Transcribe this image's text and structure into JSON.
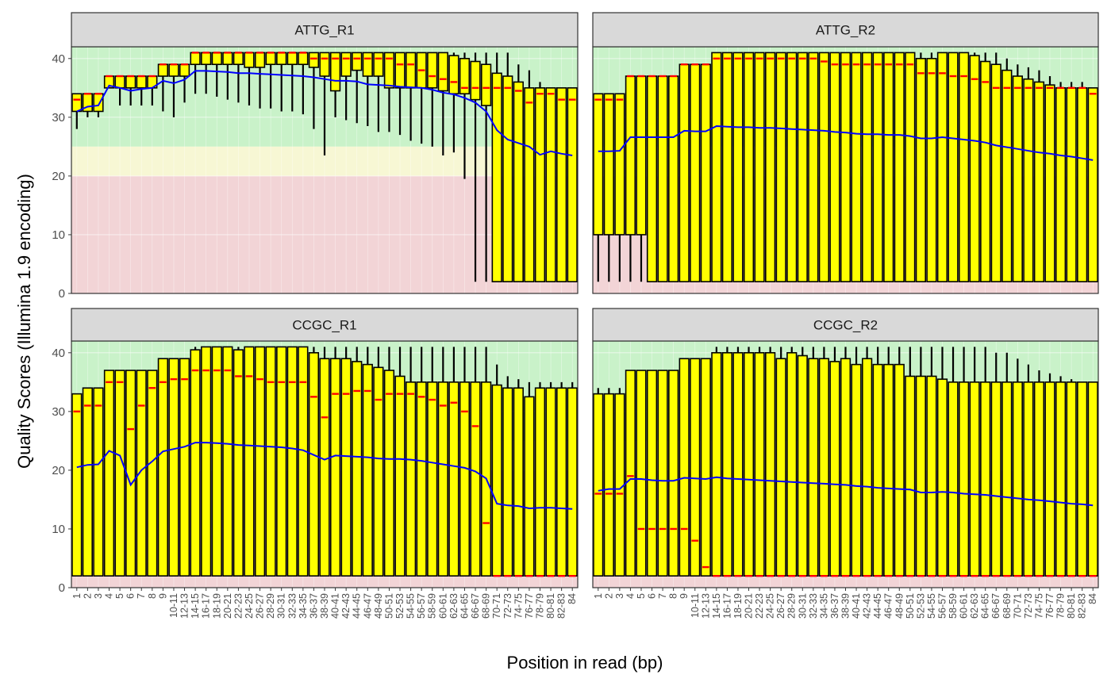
{
  "chart_data": {
    "type": "boxplot",
    "ylabel": "Quality Scores (Illumina 1.9 encoding)",
    "xlabel": "Position in read (bp)",
    "ylim": [
      0,
      42
    ],
    "yticks": [
      0,
      10,
      20,
      30,
      40
    ],
    "grid": true,
    "colors": {
      "box_fill": "#ffff00",
      "box_stroke": "#000000",
      "median": "#ff0000",
      "mean_line": "#0000ff",
      "band_good": "#c9f2c9",
      "band_ok": "#f7f7d4",
      "band_bad": "#f2d4d6",
      "strip_fill": "#d9d9d9"
    },
    "quality_bands": [
      {
        "name": "good",
        "from": 25,
        "to": 42
      },
      {
        "name": "ok",
        "from": 20,
        "to": 25
      },
      {
        "name": "bad",
        "from": 0,
        "to": 20
      }
    ],
    "categories": [
      "1",
      "2",
      "3",
      "4",
      "5",
      "6",
      "7",
      "8",
      "9",
      "10-11",
      "12-13",
      "14-15",
      "16-17",
      "18-19",
      "20-21",
      "22-23",
      "24-25",
      "26-27",
      "28-29",
      "30-31",
      "32-33",
      "34-35",
      "36-37",
      "38-39",
      "40-41",
      "42-43",
      "44-45",
      "46-47",
      "48-49",
      "50-51",
      "52-53",
      "54-55",
      "56-57",
      "58-59",
      "60-61",
      "62-63",
      "64-65",
      "66-67",
      "68-69",
      "70-71",
      "72-73",
      "74-75",
      "76-77",
      "78-79",
      "80-81",
      "82-83",
      "84"
    ],
    "tick_labels": [
      "1",
      "2",
      "3",
      "4",
      "5",
      "6",
      "7",
      "8",
      "9",
      "10-11",
      "12-13",
      "14-15",
      "16-17",
      "18-19",
      "20-21",
      "22-23",
      "24-25",
      "26-27",
      "28-29",
      "30-31",
      "32-33",
      "34-35",
      "36-37",
      "38-39",
      "40-41",
      "42-43",
      "44-45",
      "46-47",
      "48-49",
      "50-51",
      "52-53",
      "54-55",
      "56-57",
      "58-59",
      "60-61",
      "62-63",
      "64-65",
      "66-67",
      "68-69",
      "70-71",
      "72-73",
      "74-75",
      "76-77",
      "78-79",
      "80-81",
      "82-83",
      "84"
    ],
    "ytick_labels": [
      "0",
      "10",
      "20",
      "30",
      "40"
    ],
    "panels": [
      {
        "strip": "ATTG_R1",
        "mean": [
          31,
          31.8,
          32,
          35.4,
          35,
          34.5,
          34.8,
          35,
          36.2,
          35.8,
          36.4,
          37.9,
          37.9,
          37.8,
          37.7,
          37.5,
          37.5,
          37.4,
          37.3,
          37.2,
          37.1,
          37,
          36.8,
          36.5,
          36.2,
          36.2,
          36.1,
          35.6,
          35.5,
          35.4,
          35.2,
          35.1,
          35,
          34.7,
          34.2,
          33.9,
          33.3,
          32.5,
          31,
          27.8,
          26.2,
          25.6,
          25,
          23.6,
          24.2,
          23.8,
          23.5
        ],
        "median": [
          33,
          34,
          34,
          37,
          37,
          37,
          37,
          37,
          39,
          39,
          39,
          41,
          41,
          41,
          41,
          41,
          41,
          41,
          41,
          41,
          41,
          41,
          40,
          40,
          40,
          40,
          40,
          40,
          40,
          40,
          39,
          39,
          38,
          37,
          36.5,
          36,
          35,
          35,
          35,
          35,
          35,
          34.5,
          32.5,
          34,
          34,
          33,
          33
        ],
        "q1": [
          31,
          31,
          31,
          35,
          35,
          35,
          35,
          35,
          37,
          37,
          37,
          39,
          39,
          39,
          39,
          39,
          38.5,
          38.5,
          39,
          39,
          39,
          39,
          38.5,
          37,
          34.5,
          37,
          38,
          37,
          37,
          35,
          35,
          35,
          35,
          35,
          34.5,
          34,
          34,
          33,
          32,
          2,
          2,
          2,
          2,
          2,
          2,
          2,
          2
        ],
        "q3": [
          34,
          34,
          34,
          37,
          37,
          37,
          37,
          37,
          39,
          39,
          39,
          41,
          41,
          41,
          41,
          41,
          41,
          41,
          41,
          41,
          41,
          41,
          41,
          41,
          41,
          41,
          41,
          41,
          41,
          41,
          41,
          41,
          41,
          41,
          41,
          40.5,
          40,
          39.5,
          39,
          37.5,
          37,
          36,
          35,
          35,
          35,
          35,
          35
        ],
        "lower": [
          28,
          30,
          30,
          35,
          32,
          32,
          32,
          32,
          31,
          30,
          32.5,
          34,
          34,
          33.5,
          33,
          32.5,
          32,
          31.5,
          31.5,
          31,
          31,
          30.5,
          28,
          23.5,
          30,
          29.5,
          29,
          28.5,
          27.5,
          27.5,
          27,
          26,
          25.5,
          25,
          23.5,
          24,
          19.5,
          2,
          2,
          2,
          2,
          2,
          2,
          2,
          2,
          2,
          2
        ],
        "upper": [
          34,
          34,
          34,
          37,
          37,
          37,
          37,
          37,
          39,
          39,
          39,
          41,
          41,
          41,
          41,
          41,
          41,
          41,
          41,
          41,
          41,
          41,
          41,
          41,
          41,
          41,
          41,
          41,
          41,
          41,
          41,
          41,
          41,
          41,
          41,
          41,
          41,
          41,
          41,
          41,
          41,
          39,
          38,
          36,
          35,
          35,
          35
        ]
      },
      {
        "strip": "ATTG_R2",
        "mean": [
          24.2,
          24.2,
          24.3,
          26.6,
          26.6,
          26.6,
          26.6,
          26.6,
          27.7,
          27.6,
          27.6,
          28.5,
          28.4,
          28.3,
          28.3,
          28.2,
          28.2,
          28.1,
          28,
          27.9,
          27.8,
          27.7,
          27.5,
          27.4,
          27.2,
          27.1,
          27.1,
          27,
          27,
          26.8,
          26.4,
          26.4,
          26.6,
          26.4,
          26.2,
          26,
          25.7,
          25.2,
          24.9,
          24.6,
          24.3,
          24,
          23.8,
          23.5,
          23.3,
          23,
          22.7
        ],
        "median": [
          33,
          33,
          33,
          37,
          37,
          37,
          37,
          37,
          39,
          39,
          39,
          40,
          40,
          40,
          40,
          40,
          40,
          40,
          40,
          40,
          40,
          39.5,
          39,
          39,
          39,
          39,
          39,
          39,
          39,
          39,
          37.5,
          37.5,
          37.5,
          37,
          37,
          36.5,
          36,
          35,
          35,
          35,
          35,
          35,
          35,
          35,
          35,
          35,
          34
        ],
        "q1": [
          10,
          10,
          10,
          10,
          10,
          2,
          2,
          2,
          2,
          2,
          2,
          2,
          2,
          2,
          2,
          2,
          2,
          2,
          2,
          2,
          2,
          2,
          2,
          2,
          2,
          2,
          2,
          2,
          2,
          2,
          2,
          2,
          2,
          2,
          2,
          2,
          2,
          2,
          2,
          2,
          2,
          2,
          2,
          2,
          2,
          2,
          2
        ],
        "q3": [
          34,
          34,
          34,
          37,
          37,
          37,
          37,
          37,
          39,
          39,
          39,
          41,
          41,
          41,
          41,
          41,
          41,
          41,
          41,
          41,
          41,
          41,
          41,
          41,
          41,
          41,
          41,
          41,
          41,
          41,
          40,
          40,
          41,
          41,
          41,
          40.5,
          39.5,
          39,
          38,
          37,
          36.5,
          36,
          35.5,
          35,
          35,
          35,
          35
        ],
        "lower": [
          2,
          2,
          2,
          2,
          2,
          2,
          2,
          2,
          2,
          2,
          2,
          2,
          2,
          2,
          2,
          2,
          2,
          2,
          2,
          2,
          2,
          2,
          2,
          2,
          2,
          2,
          2,
          2,
          2,
          2,
          2,
          2,
          2,
          2,
          2,
          2,
          2,
          2,
          2,
          2,
          2,
          2,
          2,
          2,
          2,
          2,
          2
        ],
        "upper": [
          34,
          34,
          34,
          37,
          37,
          37,
          37,
          37,
          39,
          39,
          39,
          41,
          41,
          41,
          41,
          41,
          41,
          41,
          41,
          41,
          41,
          41,
          41,
          41,
          41,
          41,
          41,
          41,
          41,
          41,
          41,
          41,
          41,
          41,
          41,
          41,
          41,
          41,
          40,
          39,
          38.5,
          38,
          37,
          36,
          36,
          36,
          35
        ]
      },
      {
        "strip": "CCGC_R1",
        "mean": [
          20.5,
          20.9,
          21,
          23.3,
          22.5,
          17.5,
          20,
          21.5,
          23.2,
          23.6,
          24,
          24.7,
          24.7,
          24.6,
          24.5,
          24.3,
          24.2,
          24.1,
          24,
          23.9,
          23.7,
          23.4,
          22.6,
          21.8,
          22.5,
          22.4,
          22.3,
          22.2,
          22,
          21.9,
          21.9,
          21.8,
          21.6,
          21.3,
          21,
          20.7,
          20.4,
          19.8,
          18.6,
          14.3,
          14,
          13.9,
          13.5,
          13.6,
          13.6,
          13.5,
          13.4
        ],
        "median": [
          30,
          31,
          31,
          35,
          35,
          27,
          31,
          34,
          35,
          35.5,
          35.5,
          37,
          37,
          37,
          37,
          36,
          36,
          35.5,
          35,
          35,
          35,
          35,
          32.5,
          29,
          33,
          33,
          33.5,
          33.5,
          32,
          33,
          33,
          33,
          32.5,
          32,
          31,
          31.5,
          30,
          27.5,
          11,
          2,
          2,
          2,
          2,
          2,
          2,
          2,
          2
        ],
        "q1": [
          2,
          2,
          2,
          2,
          2,
          2,
          2,
          2,
          2,
          2,
          2,
          2,
          2,
          2,
          2,
          2,
          2,
          2,
          2,
          2,
          2,
          2,
          2,
          2,
          2,
          2,
          2,
          2,
          2,
          2,
          2,
          2,
          2,
          2,
          2,
          2,
          2,
          2,
          2,
          2,
          2,
          2,
          2,
          2,
          2,
          2,
          2
        ],
        "q3": [
          33,
          34,
          34,
          37,
          37,
          37,
          37,
          37,
          39,
          39,
          39,
          40.5,
          41,
          41,
          41,
          40.5,
          41,
          41,
          41,
          41,
          41,
          41,
          40,
          39,
          39,
          39,
          38.5,
          38,
          37.5,
          37,
          36,
          35,
          35,
          35,
          35,
          35,
          35,
          35,
          35,
          34.5,
          34,
          34,
          32.5,
          34,
          34,
          34,
          34
        ],
        "lower": [
          2,
          2,
          2,
          2,
          2,
          2,
          2,
          2,
          2,
          2,
          2,
          2,
          2,
          2,
          2,
          2,
          2,
          2,
          2,
          2,
          2,
          2,
          2,
          2,
          2,
          2,
          2,
          2,
          2,
          2,
          2,
          2,
          2,
          2,
          2,
          2,
          2,
          2,
          2,
          2,
          2,
          2,
          2,
          2,
          2,
          2,
          2
        ],
        "upper": [
          33,
          34,
          34,
          37,
          37,
          37,
          37,
          37,
          39,
          39,
          39,
          41,
          41,
          41,
          41,
          41,
          41,
          41,
          41,
          41,
          41,
          41,
          41,
          41,
          41,
          41,
          41,
          41,
          41,
          41,
          41,
          41,
          41,
          41,
          41,
          41,
          41,
          41,
          41,
          38,
          36,
          35.5,
          35,
          35,
          35,
          35,
          35
        ]
      },
      {
        "strip": "CCGC_R2",
        "mean": [
          16.5,
          16.8,
          16.8,
          18.5,
          18.5,
          18.3,
          18.2,
          18.2,
          18.7,
          18.6,
          18.5,
          18.8,
          18.6,
          18.5,
          18.4,
          18.3,
          18.2,
          18.1,
          18,
          17.9,
          17.8,
          17.7,
          17.6,
          17.5,
          17.3,
          17.2,
          17,
          16.9,
          16.8,
          16.7,
          16.2,
          16.2,
          16.3,
          16.2,
          16,
          15.9,
          15.8,
          15.6,
          15.4,
          15.2,
          15,
          14.9,
          14.7,
          14.5,
          14.3,
          14.2,
          14
        ],
        "median": [
          16,
          16,
          16,
          19,
          10,
          10,
          10,
          10,
          10,
          8,
          3.5,
          2,
          2,
          2,
          2,
          2,
          2,
          2,
          2,
          2,
          2,
          2,
          2,
          2,
          2,
          2,
          2,
          2,
          2,
          2,
          2,
          2,
          2,
          2,
          2,
          2,
          2,
          2,
          2,
          2,
          2,
          2,
          2,
          2,
          2,
          2,
          2
        ],
        "q1": [
          2,
          2,
          2,
          2,
          2,
          2,
          2,
          2,
          2,
          2,
          2,
          2,
          2,
          2,
          2,
          2,
          2,
          2,
          2,
          2,
          2,
          2,
          2,
          2,
          2,
          2,
          2,
          2,
          2,
          2,
          2,
          2,
          2,
          2,
          2,
          2,
          2,
          2,
          2,
          2,
          2,
          2,
          2,
          2,
          2,
          2,
          2
        ],
        "q3": [
          33,
          33,
          33,
          37,
          37,
          37,
          37,
          37,
          39,
          39,
          39,
          40,
          40,
          40,
          40,
          40,
          40,
          39,
          40,
          39.5,
          39,
          39,
          38.5,
          39,
          38,
          39,
          38,
          38,
          38,
          36,
          36,
          36,
          35.5,
          35,
          35,
          35,
          35,
          35,
          35,
          35,
          35,
          35,
          35,
          35,
          35,
          35,
          35
        ],
        "lower": [
          2,
          2,
          2,
          2,
          2,
          2,
          2,
          2,
          2,
          2,
          2,
          2,
          2,
          2,
          2,
          2,
          2,
          2,
          2,
          2,
          2,
          2,
          2,
          2,
          2,
          2,
          2,
          2,
          2,
          2,
          2,
          2,
          2,
          2,
          2,
          2,
          2,
          2,
          2,
          2,
          2,
          2,
          2,
          2,
          2,
          2,
          2
        ],
        "upper": [
          34,
          34,
          34,
          37,
          37,
          37,
          37,
          37,
          39,
          39,
          39,
          41,
          41,
          41,
          41,
          41,
          41,
          41,
          41,
          41,
          41,
          41,
          41,
          41,
          41,
          41,
          41,
          41,
          41,
          41,
          41,
          41,
          41,
          41,
          41,
          41,
          41,
          40,
          40,
          39,
          38,
          37,
          36.5,
          36,
          35.5,
          35,
          35
        ]
      }
    ]
  }
}
